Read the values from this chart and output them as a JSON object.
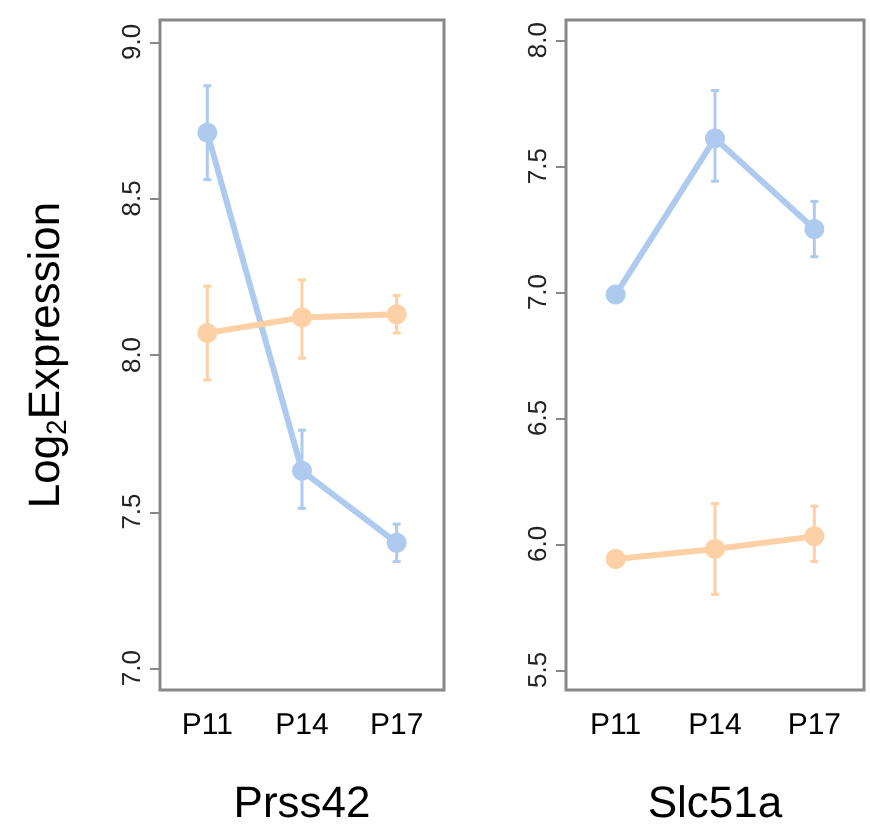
{
  "chart_data": [
    {
      "type": "line",
      "ylabel": "Log$_{2}$Expression",
      "xlabel": "Prss42",
      "categories": [
        "P11",
        "P14",
        "P17"
      ],
      "ylim": [
        6.93,
        9.07
      ],
      "yticks": [
        {
          "value": 7,
          "label": "7.0"
        },
        7.5,
        {
          "value": 8,
          "label": "8.0"
        },
        8.5,
        {
          "value": 9,
          "label": "9.0"
        }
      ],
      "grid": false,
      "marker": "circle",
      "line_style": "solid",
      "series": [
        {
          "color": "#aecbef",
          "values": [
            8.71,
            7.63,
            7.4
          ],
          "errors": [
            [
              8.56,
              8.86
            ],
            [
              7.51,
              7.76
            ],
            [
              7.34,
              7.46
            ]
          ]
        },
        {
          "color": "#fdd1a5",
          "values": [
            8.07,
            8.12,
            8.13
          ],
          "errors": [
            [
              7.92,
              8.22
            ],
            [
              7.99,
              8.24
            ],
            [
              8.07,
              8.19
            ]
          ]
        }
      ]
    },
    {
      "type": "line",
      "xlabel": "Slc51a",
      "categories": [
        "P11",
        "P14",
        "P17"
      ],
      "ylim": [
        5.42,
        8.08
      ],
      "yticks": [
        5.5,
        {
          "value": 6,
          "label": "6.0"
        },
        6.5,
        {
          "value": 7,
          "label": "7.0"
        },
        7.5,
        {
          "value": 8,
          "label": "8.0"
        }
      ],
      "grid": false,
      "marker": "circle",
      "line_style": "solid",
      "series": [
        {
          "color": "#aecbef",
          "values": [
            6.99,
            7.61,
            7.25
          ],
          "errors": [
            null,
            [
              7.44,
              7.8
            ],
            [
              7.14,
              7.36
            ]
          ]
        },
        {
          "color": "#fdd1a5",
          "values": [
            5.94,
            5.98,
            6.03
          ],
          "errors": [
            null,
            [
              5.8,
              6.16
            ],
            [
              5.93,
              6.15
            ]
          ]
        }
      ]
    }
  ]
}
